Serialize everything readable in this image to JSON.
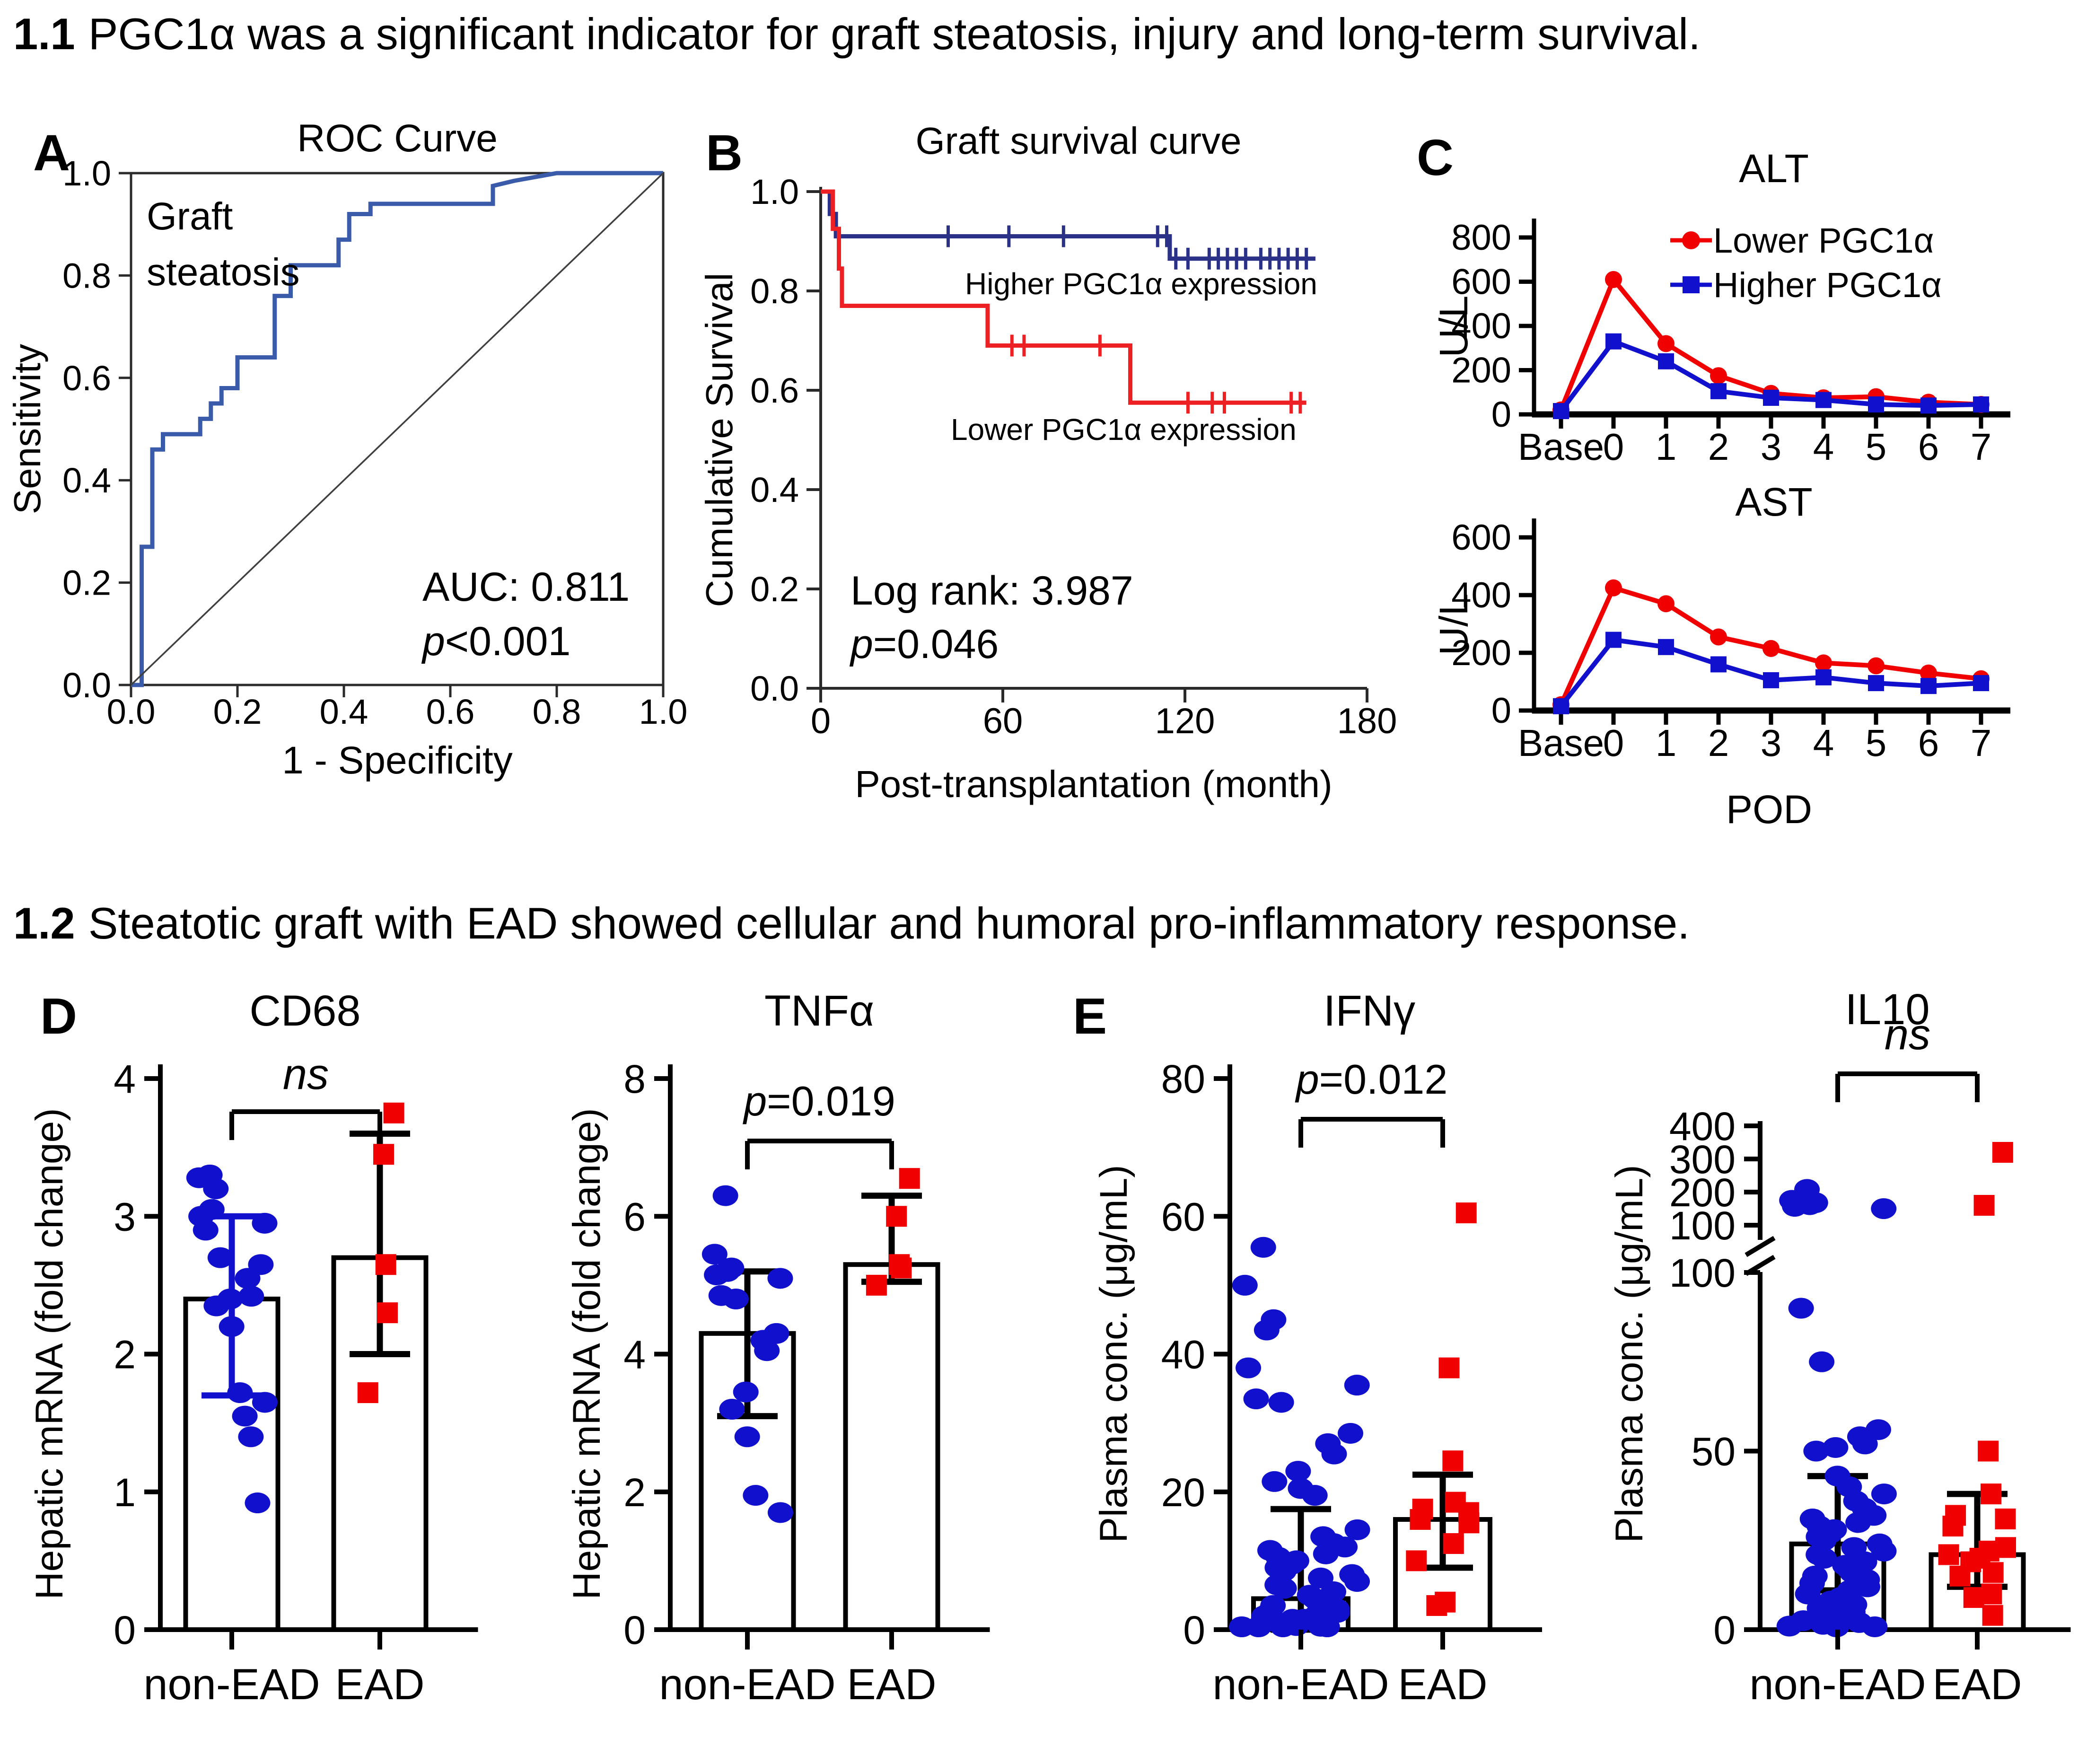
{
  "sections": {
    "s1": {
      "number": "1.1",
      "text": "PGC1α was a significant indicator for graft steatosis, injury and long-term survival."
    },
    "s2": {
      "number": "1.2",
      "text": "Steatotic graft with EAD showed cellular and humoral pro-inflammatory response."
    }
  },
  "panel_labels": {
    "a": "A",
    "b": "B",
    "c": "C",
    "d": "D",
    "e": "E"
  },
  "colors": {
    "roc_line": "#3A5BA9",
    "reference_line": "#3F3F3F",
    "km_higher": "#2B3187",
    "km_lower": "#ED2024",
    "series_red": "#F00000",
    "series_blue": "#1111CD",
    "axis": "#000000"
  },
  "chart_data": [
    {
      "id": "roc",
      "type": "roc",
      "title": "ROC Curve",
      "xlabel": "1 - Specificity",
      "ylabel": "Sensitivity",
      "xlim": [
        0,
        1
      ],
      "ylim": [
        0,
        1
      ],
      "xticks": [
        {
          "t": "0.0",
          "v": 0.0
        },
        {
          "t": "0.2",
          "v": 0.2
        },
        {
          "t": "0.4",
          "v": 0.4
        },
        {
          "t": "0.6",
          "v": 0.6
        },
        {
          "t": "0.8",
          "v": 0.8
        },
        {
          "t": "1.0",
          "v": 1.0
        }
      ],
      "yticks": [
        {
          "t": "0.0",
          "v": 0.0
        },
        {
          "t": "0.2",
          "v": 0.2
        },
        {
          "t": "0.4",
          "v": 0.4
        },
        {
          "t": "0.6",
          "v": 0.6
        },
        {
          "t": "0.8",
          "v": 0.8
        },
        {
          "t": "1.0",
          "v": 1.0
        }
      ],
      "annotations": {
        "corner": "Graft\nsteatosis",
        "auc": "AUC: 0.811",
        "pvalue": "p<0.001"
      },
      "series": [
        {
          "name": "ROC curve (graft steatosis)",
          "color": "#3A5BA9",
          "points": [
            [
              0,
              0
            ],
            [
              0.02,
              0
            ],
            [
              0.02,
              0.27
            ],
            [
              0.04,
              0.27
            ],
            [
              0.04,
              0.46
            ],
            [
              0.06,
              0.46
            ],
            [
              0.06,
              0.49
            ],
            [
              0.13,
              0.49
            ],
            [
              0.13,
              0.52
            ],
            [
              0.15,
              0.52
            ],
            [
              0.15,
              0.55
            ],
            [
              0.17,
              0.55
            ],
            [
              0.17,
              0.58
            ],
            [
              0.2,
              0.58
            ],
            [
              0.2,
              0.64
            ],
            [
              0.27,
              0.64
            ],
            [
              0.27,
              0.76
            ],
            [
              0.3,
              0.76
            ],
            [
              0.3,
              0.82
            ],
            [
              0.39,
              0.82
            ],
            [
              0.39,
              0.87
            ],
            [
              0.41,
              0.87
            ],
            [
              0.41,
              0.92
            ],
            [
              0.45,
              0.92
            ],
            [
              0.45,
              0.94
            ],
            [
              0.68,
              0.94
            ],
            [
              0.68,
              0.975
            ],
            [
              0.72,
              0.985
            ],
            [
              0.8,
              1
            ],
            [
              1,
              1
            ]
          ]
        },
        {
          "name": "reference diagonal",
          "color": "#3F3F3F",
          "points": [
            [
              0,
              0
            ],
            [
              1,
              1
            ]
          ]
        }
      ]
    },
    {
      "id": "km",
      "type": "km",
      "title": "Graft survival curve",
      "xlabel": "Post-transplantation (month)",
      "ylabel": "Cumulative Survival",
      "xlim": [
        0,
        180
      ],
      "xticks": [
        {
          "t": "0",
          "v": 0
        },
        {
          "t": "60",
          "v": 60
        },
        {
          "t": "120",
          "v": 120
        },
        {
          "t": "180",
          "v": 180
        }
      ],
      "yticks": [
        {
          "t": "0.0",
          "v": 0.0
        },
        {
          "t": "0.2",
          "v": 0.2
        },
        {
          "t": "0.4",
          "v": 0.4
        },
        {
          "t": "0.6",
          "v": 0.6
        },
        {
          "t": "0.8",
          "v": 0.8
        },
        {
          "t": "1.0",
          "v": 1.0
        }
      ],
      "stats": [
        "Log rank: 3.987",
        "p=0.046"
      ],
      "series": [
        {
          "name": "Higher PGC1α expression",
          "color": "#2B3187",
          "steps": [
            [
              0,
              1
            ],
            [
              3,
              1
            ],
            [
              3,
              0.955
            ],
            [
              5,
              0.955
            ],
            [
              5,
              0.91
            ],
            [
              115,
              0.91
            ],
            [
              115,
              0.865
            ],
            [
              163,
              0.865
            ]
          ],
          "censors": [
            [
              42,
              0.91
            ],
            [
              62,
              0.91
            ],
            [
              80,
              0.91
            ],
            [
              111,
              0.91
            ],
            [
              114,
              0.91
            ],
            [
              117,
              0.865
            ],
            [
              121,
              0.865
            ],
            [
              128,
              0.865
            ],
            [
              131,
              0.865
            ],
            [
              134,
              0.865
            ],
            [
              137,
              0.865
            ],
            [
              140,
              0.865
            ],
            [
              145,
              0.865
            ],
            [
              148,
              0.865
            ],
            [
              151,
              0.865
            ],
            [
              154,
              0.865
            ],
            [
              157,
              0.865
            ],
            [
              160,
              0.865
            ]
          ]
        },
        {
          "name": "Lower PGC1α expression",
          "color": "#ED2024",
          "steps": [
            [
              0,
              1
            ],
            [
              4,
              1
            ],
            [
              4,
              0.925
            ],
            [
              6,
              0.925
            ],
            [
              6,
              0.845
            ],
            [
              7,
              0.845
            ],
            [
              7,
              0.77
            ],
            [
              55,
              0.77
            ],
            [
              55,
              0.69
            ],
            [
              102,
              0.69
            ],
            [
              102,
              0.575
            ],
            [
              160,
              0.575
            ]
          ],
          "censors": [
            [
              63,
              0.69
            ],
            [
              67,
              0.69
            ],
            [
              92,
              0.69
            ],
            [
              121,
              0.575
            ],
            [
              129,
              0.575
            ],
            [
              133,
              0.575
            ],
            [
              155,
              0.575
            ],
            [
              158,
              0.575
            ]
          ]
        }
      ]
    },
    {
      "id": "alt",
      "type": "series-line",
      "title": "ALT",
      "ylabel": "U/L",
      "xlabel": "",
      "categories": [
        "Base",
        "0",
        "1",
        "2",
        "3",
        "4",
        "5",
        "6",
        "7"
      ],
      "ylim": [
        0,
        800
      ],
      "yticks": [
        {
          "t": "0",
          "v": 0
        },
        {
          "t": "200",
          "v": 200
        },
        {
          "t": "400",
          "v": 400
        },
        {
          "t": "600",
          "v": 600
        },
        {
          "t": "800",
          "v": 800
        }
      ],
      "show_legend": true,
      "series": [
        {
          "name": "Lower PGC1α",
          "color": "#F00000",
          "marker": "circle",
          "values": [
            20,
            610,
            320,
            175,
            95,
            75,
            80,
            55,
            45
          ]
        },
        {
          "name": "Higher PGC1α",
          "color": "#1111CD",
          "marker": "square",
          "values": [
            15,
            330,
            240,
            105,
            75,
            65,
            45,
            40,
            45
          ]
        }
      ]
    },
    {
      "id": "ast",
      "type": "series-line",
      "title": "AST",
      "ylabel": "U/L",
      "xlabel": "POD",
      "categories": [
        "Base",
        "0",
        "1",
        "2",
        "3",
        "4",
        "5",
        "6",
        "7"
      ],
      "ylim": [
        0,
        600
      ],
      "yticks": [
        {
          "t": "0",
          "v": 0
        },
        {
          "t": "200",
          "v": 200
        },
        {
          "t": "400",
          "v": 400
        },
        {
          "t": "600",
          "v": 600
        }
      ],
      "show_legend": false,
      "series": [
        {
          "name": "Lower PGC1α",
          "color": "#F00000",
          "marker": "circle",
          "values": [
            20,
            425,
            370,
            255,
            215,
            165,
            155,
            130,
            110
          ]
        },
        {
          "name": "Higher PGC1α",
          "color": "#1111CD",
          "marker": "square",
          "values": [
            15,
            245,
            220,
            160,
            105,
            115,
            95,
            85,
            95
          ]
        }
      ]
    },
    {
      "id": "cd68",
      "type": "scatter-bar",
      "title": "CD68",
      "ylabel": "Hepatic mRNA (fold change)",
      "ylim": [
        0,
        4
      ],
      "yticks": [
        {
          "t": "0",
          "v": 0
        },
        {
          "t": "1",
          "v": 1
        },
        {
          "t": "2",
          "v": 2
        },
        {
          "t": "3",
          "v": 3
        },
        {
          "t": "4",
          "v": 4
        }
      ],
      "sig": "ns",
      "groups": [
        {
          "label": "non-EAD",
          "bar": 2.4,
          "whisker": [
            1.7,
            3.0
          ],
          "err_color": "#1111CD",
          "marker": "circle",
          "color": "#1111CD",
          "spread": 0.75,
          "values": [
            3.3,
            3.28,
            3.2,
            3.05,
            3.0,
            2.95,
            2.9,
            2.7,
            2.65,
            2.55,
            2.42,
            2.4,
            2.35,
            2.2,
            1.72,
            1.65,
            1.55,
            1.4,
            0.92
          ]
        },
        {
          "label": "EAD",
          "bar": 2.7,
          "whisker": [
            2.0,
            3.6
          ],
          "err_color": "#000000",
          "marker": "square",
          "color": "#F00000",
          "spread": 0.55,
          "values": [
            3.75,
            3.45,
            2.65,
            2.3,
            1.72
          ]
        }
      ]
    },
    {
      "id": "tnfa",
      "type": "scatter-bar",
      "title": "TNFα",
      "ylabel": "Hepatic mRNA (fold change)",
      "ylim": [
        0,
        8
      ],
      "yticks": [
        {
          "t": "0",
          "v": 0
        },
        {
          "t": "2",
          "v": 2
        },
        {
          "t": "4",
          "v": 4
        },
        {
          "t": "6",
          "v": 6
        },
        {
          "t": "8",
          "v": 8
        }
      ],
      "sig": "p=0.019",
      "groups": [
        {
          "label": "non-EAD",
          "bar": 4.3,
          "whisker": [
            3.1,
            5.2
          ],
          "err_color": "#000000",
          "marker": "circle",
          "color": "#1111CD",
          "spread": 0.75,
          "values": [
            6.3,
            5.45,
            5.25,
            5.2,
            5.15,
            5.1,
            4.85,
            4.8,
            4.3,
            4.2,
            4.05,
            3.45,
            3.2,
            2.8,
            1.95,
            1.7
          ]
        },
        {
          "label": "EAD",
          "bar": 5.3,
          "whisker": [
            5.05,
            6.3
          ],
          "err_color": "#000000",
          "marker": "square",
          "color": "#F00000",
          "spread": 0.7,
          "values": [
            6.55,
            6.0,
            5.3,
            5.25,
            5.0
          ]
        }
      ]
    },
    {
      "id": "ifng",
      "type": "scatter-bar",
      "title": "IFNγ",
      "ylabel": "Plasma conc. (μg/mL)",
      "ylim": [
        0,
        80
      ],
      "yticks": [
        {
          "t": "0",
          "v": 0
        },
        {
          "t": "20",
          "v": 20
        },
        {
          "t": "40",
          "v": 40
        },
        {
          "t": "60",
          "v": 60
        },
        {
          "t": "80",
          "v": 80
        }
      ],
      "sig": "p=0.012",
      "groups": [
        {
          "label": "non-EAD",
          "bar": 4.5,
          "whisker": [
            0,
            17.5
          ],
          "err_color": "#000000",
          "marker": "circle",
          "color": "#1111CD",
          "spread": 1.25,
          "values": [
            55.5,
            50,
            45,
            43.5,
            38,
            35.5,
            33.5,
            33,
            28.5,
            27,
            25.5,
            23,
            21.5,
            20.5,
            19.5,
            14.5,
            13.5,
            12.5,
            12,
            11.5,
            11,
            10.5,
            10,
            9.5,
            9,
            8.5,
            8,
            7.5,
            7,
            6.5,
            6,
            5.5,
            5,
            4.5,
            4,
            3.5,
            3,
            2.5,
            2.5,
            2,
            2,
            1.5,
            1.5,
            1,
            1,
            0.8,
            0.6,
            0.5,
            0.4,
            0.3,
            0.2,
            0.2
          ]
        },
        {
          "label": "EAD",
          "bar": 16,
          "whisker": [
            9,
            22.5
          ],
          "err_color": "#000000",
          "marker": "square",
          "color": "#F00000",
          "spread": 0.9,
          "values": [
            60.5,
            38,
            24.5,
            18.5,
            17.5,
            17,
            16,
            15.5,
            12.5,
            10,
            4,
            3.5
          ]
        }
      ]
    },
    {
      "id": "il10",
      "type": "scatter-bar-broken",
      "title": "IL10",
      "ylabel": "Plasma conc. (μg/mL)",
      "sig": "ns",
      "yticks_lower": [
        {
          "t": "0",
          "v": 0
        },
        {
          "t": "50",
          "v": 50
        },
        {
          "t": "100",
          "v": 100
        }
      ],
      "yticks_upper": [
        {
          "t": "100",
          "v": 100
        },
        {
          "t": "200",
          "v": 200
        },
        {
          "t": "300",
          "v": 300
        },
        {
          "t": "400",
          "v": 400
        }
      ],
      "groups": [
        {
          "label": "non-EAD",
          "bar": 24,
          "whisker": [
            11,
            43
          ],
          "err_color": "#000000",
          "marker": "circle",
          "color": "#1111CD",
          "spread": 1.05,
          "values": [
            208,
            175,
            168,
            162,
            157,
            150,
            90,
            75,
            56,
            54,
            52,
            51,
            50,
            43,
            40,
            38,
            36,
            34,
            32,
            31,
            30,
            29,
            28,
            27,
            26,
            25,
            24,
            23,
            22,
            21,
            20,
            19,
            18,
            17,
            16,
            15,
            14,
            13,
            12,
            11,
            10,
            9,
            8,
            7,
            6,
            5,
            4,
            3,
            2.5,
            2,
            1.5,
            1,
            0.8,
            0.5
          ]
        },
        {
          "label": "EAD",
          "bar": 21,
          "whisker": [
            12,
            38
          ],
          "err_color": "#000000",
          "marker": "square",
          "color": "#F00000",
          "spread": 1.0,
          "values": [
            320,
            160,
            50,
            38,
            32,
            31,
            29,
            23,
            22,
            21,
            20,
            19,
            16,
            15,
            10,
            9,
            4
          ]
        }
      ]
    }
  ]
}
